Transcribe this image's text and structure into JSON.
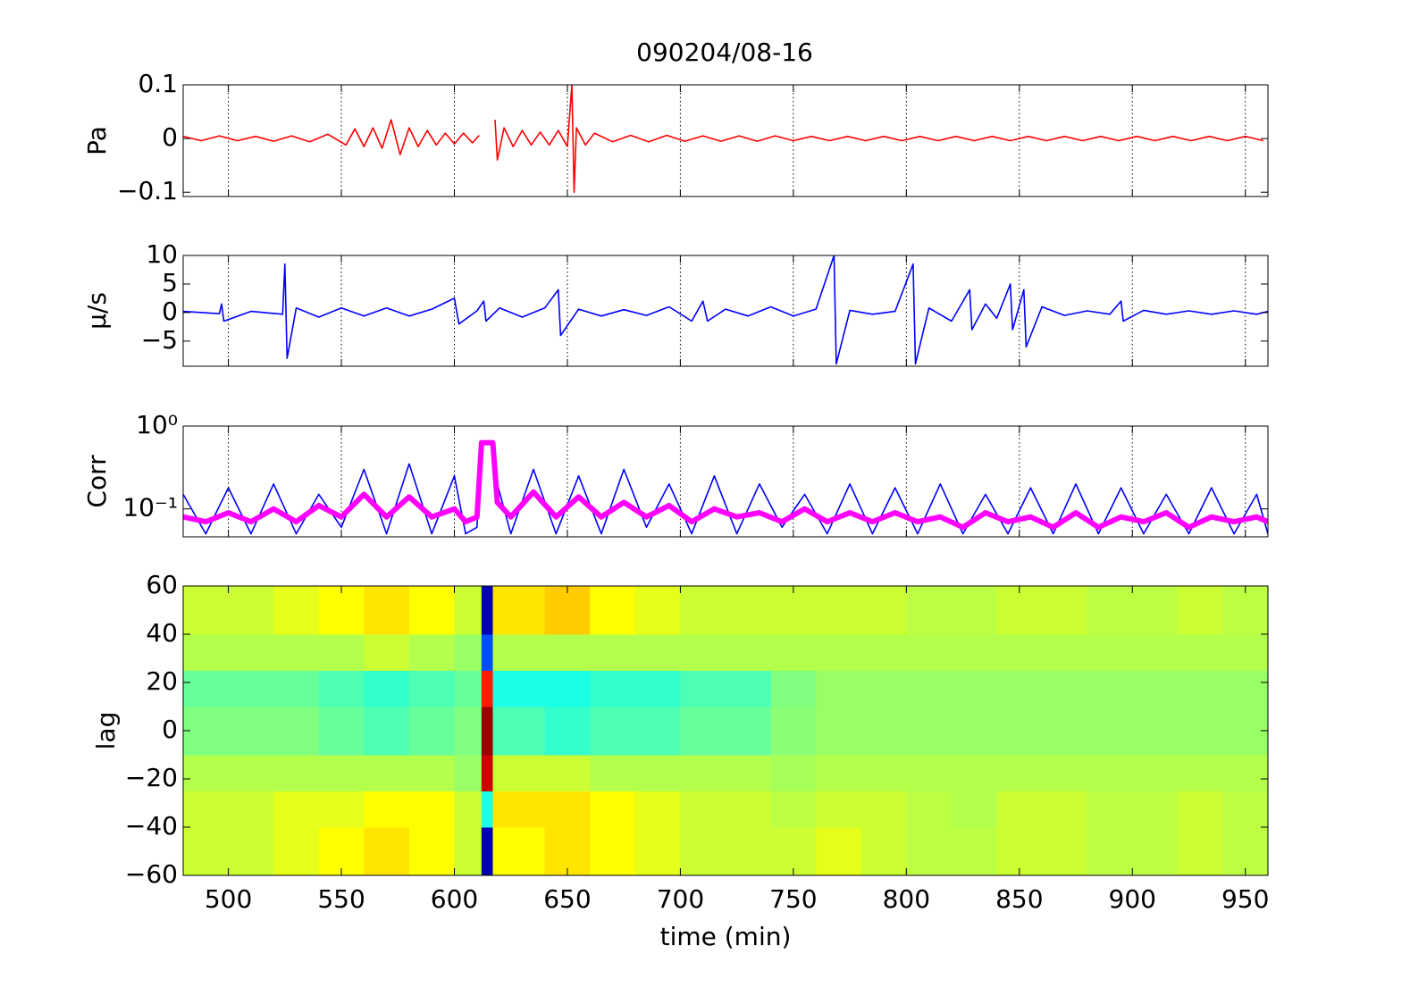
{
  "chart_data": [
    {
      "type": "line",
      "title": "090204/08-16",
      "ylabel": "Pa",
      "xlim": [
        480,
        960
      ],
      "xticks": [
        500,
        550,
        600,
        650,
        700,
        750,
        800,
        850,
        900,
        950
      ],
      "ylim": [
        -0.108,
        0.1
      ],
      "yticks": [
        {
          "value": -0.1,
          "label": "−0.1"
        },
        0,
        0.1
      ],
      "grid": "x",
      "series": [
        {
          "color": "#ff0000",
          "x": [
            480,
            488,
            496,
            504,
            512,
            520,
            528,
            536,
            544,
            552,
            556,
            560,
            564,
            568,
            572,
            576,
            580,
            584,
            588,
            592,
            596,
            600,
            604,
            608,
            611,
            615,
            618,
            619,
            622,
            626,
            630,
            634,
            638,
            642,
            646,
            650,
            652,
            653,
            654,
            658,
            662,
            670,
            678,
            686,
            694,
            702,
            710,
            718,
            726,
            734,
            742,
            750,
            758,
            766,
            774,
            782,
            790,
            798,
            806,
            814,
            822,
            830,
            838,
            846,
            854,
            862,
            870,
            878,
            886,
            894,
            902,
            910,
            918,
            926,
            934,
            942,
            950,
            958
          ],
          "values": [
            0.004,
            -0.004,
            0.005,
            -0.004,
            0.004,
            -0.005,
            0.005,
            -0.006,
            0.008,
            -0.012,
            0.018,
            -0.015,
            0.02,
            -0.018,
            0.035,
            -0.03,
            0.02,
            -0.015,
            0.015,
            -0.012,
            0.01,
            -0.01,
            0.01,
            -0.008,
            0.006,
            null,
            0.035,
            -0.04,
            0.02,
            -0.015,
            0.015,
            -0.012,
            0.012,
            -0.012,
            0.015,
            -0.015,
            0.1,
            -0.1,
            0.02,
            -0.012,
            0.01,
            -0.006,
            0.006,
            -0.006,
            0.006,
            -0.005,
            0.005,
            -0.005,
            0.005,
            -0.005,
            0.005,
            -0.004,
            0.004,
            -0.004,
            0.004,
            -0.004,
            0.004,
            -0.004,
            0.004,
            -0.004,
            0.004,
            -0.004,
            0.004,
            -0.004,
            0.004,
            -0.004,
            0.004,
            -0.004,
            0.004,
            -0.004,
            0.004,
            -0.004,
            0.004,
            -0.004,
            0.004,
            -0.004,
            0.004,
            -0.004
          ]
        }
      ]
    },
    {
      "type": "line",
      "ylabel": "μ/s",
      "xlim": [
        480,
        960
      ],
      "xticks": [
        500,
        550,
        600,
        650,
        700,
        750,
        800,
        850,
        900,
        950
      ],
      "ylim": [
        -9.4,
        10
      ],
      "yticks": [
        {
          "value": -5,
          "label": "−5"
        },
        0,
        5,
        10
      ],
      "grid": "x",
      "series": [
        {
          "color": "#0000ff",
          "x": [
            480,
            496,
            497,
            498,
            510,
            524,
            525,
            526,
            530,
            540,
            550,
            560,
            570,
            580,
            590,
            600,
            602,
            610,
            613,
            614,
            620,
            630,
            640,
            646,
            647,
            655,
            665,
            675,
            685,
            695,
            705,
            710,
            712,
            720,
            730,
            740,
            750,
            760,
            768,
            769,
            775,
            785,
            795,
            803,
            804,
            810,
            820,
            828,
            829,
            835,
            840,
            846,
            847,
            852,
            853,
            860,
            870,
            880,
            890,
            895,
            896,
            905,
            915,
            925,
            935,
            945,
            955,
            960
          ],
          "values": [
            0.2,
            -0.2,
            1.5,
            -1.5,
            0.2,
            -0.3,
            8.5,
            -8,
            0.8,
            -0.8,
            0.8,
            -0.6,
            0.8,
            -0.6,
            0.6,
            2.5,
            -2,
            0.3,
            2,
            -1.5,
            0.8,
            -0.8,
            0.8,
            4,
            -4,
            0.6,
            -0.6,
            0.5,
            -0.5,
            1,
            -1.5,
            2,
            -1.5,
            0.6,
            -0.6,
            1,
            -0.6,
            0.6,
            10,
            -9,
            0.4,
            -0.3,
            0.2,
            8.5,
            -9,
            0.8,
            -1.5,
            4,
            -3,
            1.5,
            -1,
            5,
            -3,
            4,
            -6,
            1,
            -0.5,
            0.3,
            -0.3,
            2,
            -1.5,
            0.4,
            -0.3,
            0.3,
            -0.3,
            0.3,
            -0.3,
            0.2
          ]
        }
      ]
    },
    {
      "type": "line",
      "ylabel": "Corr",
      "yscale": "log",
      "xlim": [
        480,
        960
      ],
      "xticks": [
        500,
        550,
        600,
        650,
        700,
        750,
        800,
        850,
        900,
        950
      ],
      "ylim": [
        0.046,
        1
      ],
      "yticks": [
        {
          "value": 0.1,
          "label": "10⁻¹"
        },
        {
          "value": 1,
          "label": "10⁰"
        }
      ],
      "grid": "x",
      "x": [
        480,
        490,
        500,
        510,
        520,
        530,
        540,
        550,
        560,
        570,
        580,
        590,
        600,
        605,
        610,
        612,
        617,
        619,
        625,
        635,
        645,
        655,
        665,
        675,
        685,
        695,
        705,
        715,
        725,
        735,
        745,
        755,
        765,
        775,
        785,
        795,
        805,
        815,
        825,
        835,
        845,
        855,
        865,
        875,
        885,
        895,
        905,
        915,
        925,
        935,
        945,
        955,
        960
      ],
      "series": [
        {
          "color": "#0000ff",
          "values": [
            0.15,
            0.05,
            0.18,
            0.05,
            0.2,
            0.05,
            0.15,
            0.06,
            0.3,
            0.05,
            0.35,
            0.05,
            0.25,
            0.05,
            0.06,
            0.6,
            0.6,
            0.2,
            0.05,
            0.3,
            0.05,
            0.25,
            0.05,
            0.3,
            0.06,
            0.2,
            0.05,
            0.25,
            0.05,
            0.2,
            0.06,
            0.15,
            0.05,
            0.2,
            0.05,
            0.18,
            0.05,
            0.2,
            0.05,
            0.15,
            0.05,
            0.18,
            0.05,
            0.2,
            0.05,
            0.18,
            0.05,
            0.15,
            0.05,
            0.18,
            0.05,
            0.15,
            0.05
          ]
        },
        {
          "color": "#ff00ff",
          "values": [
            0.08,
            0.07,
            0.09,
            0.07,
            0.1,
            0.07,
            0.11,
            0.08,
            0.15,
            0.08,
            0.14,
            0.08,
            0.1,
            0.07,
            0.08,
            0.63,
            0.63,
            0.12,
            0.08,
            0.16,
            0.08,
            0.14,
            0.08,
            0.12,
            0.08,
            0.11,
            0.07,
            0.1,
            0.08,
            0.09,
            0.07,
            0.1,
            0.07,
            0.09,
            0.07,
            0.09,
            0.07,
            0.08,
            0.06,
            0.09,
            0.07,
            0.08,
            0.06,
            0.09,
            0.06,
            0.08,
            0.07,
            0.09,
            0.06,
            0.08,
            0.07,
            0.08,
            0.07
          ]
        }
      ]
    },
    {
      "type": "heatmap",
      "ylabel": "lag",
      "xlabel": "time (min)",
      "xlim": [
        480,
        960
      ],
      "xticks": [
        500,
        550,
        600,
        650,
        700,
        750,
        800,
        850,
        900,
        950
      ],
      "ylim": [
        -60,
        60
      ],
      "yticks": [
        {
          "value": -60,
          "label": "−60"
        },
        {
          "value": -40,
          "label": "−40"
        },
        {
          "value": -20,
          "label": "−20"
        },
        0,
        20,
        40,
        60
      ],
      "clim": [
        -1,
        1
      ],
      "colormap": "jet",
      "xbins": [
        480,
        500,
        520,
        540,
        560,
        580,
        600,
        612,
        617,
        640,
        660,
        680,
        700,
        720,
        740,
        760,
        780,
        800,
        820,
        840,
        860,
        880,
        900,
        920,
        940,
        960
      ],
      "ybins": [
        -60,
        -40,
        -25,
        -10,
        10,
        25,
        40,
        60
      ],
      "z": [
        [
          0.15,
          0.15,
          0.2,
          0.25,
          0.3,
          0.25,
          0.15,
          -0.9,
          0.25,
          0.3,
          0.25,
          0.2,
          0.15,
          0.15,
          0.15,
          0.2,
          0.15,
          0.12,
          0.12,
          0.15,
          0.15,
          0.12,
          0.12,
          0.15,
          0.12
        ],
        [
          0.15,
          0.15,
          0.2,
          0.2,
          0.25,
          0.25,
          0.15,
          -0.2,
          0.3,
          0.3,
          0.25,
          0.2,
          0.15,
          0.15,
          0.12,
          0.15,
          0.15,
          0.12,
          0.1,
          0.15,
          0.15,
          0.12,
          0.12,
          0.15,
          0.12
        ],
        [
          0.1,
          0.1,
          0.1,
          0.1,
          0.1,
          0.1,
          0.05,
          0.85,
          0.15,
          0.15,
          0.1,
          0.1,
          0.1,
          0.1,
          0.08,
          0.1,
          0.1,
          0.1,
          0.1,
          0.1,
          0.1,
          0.1,
          0.1,
          0.1,
          0.1
        ],
        [
          0,
          0,
          0,
          -0.05,
          -0.1,
          -0.05,
          0,
          0.95,
          -0.1,
          -0.15,
          -0.1,
          -0.1,
          -0.05,
          -0.05,
          0.02,
          0.05,
          0.05,
          0.05,
          0.05,
          0.05,
          0.05,
          0.05,
          0.05,
          0.05,
          0.05
        ],
        [
          -0.05,
          -0.05,
          -0.05,
          -0.1,
          -0.15,
          -0.1,
          -0.05,
          0.7,
          -0.2,
          -0.2,
          -0.15,
          -0.15,
          -0.1,
          -0.1,
          0,
          0.05,
          0.05,
          0.05,
          0.05,
          0.05,
          0.05,
          0.05,
          0.05,
          0.05,
          0.05
        ],
        [
          0.1,
          0.1,
          0.1,
          0.1,
          0.15,
          0.1,
          0.05,
          -0.6,
          0.1,
          0.1,
          0.1,
          0.1,
          0.1,
          0.1,
          0.1,
          0.1,
          0.1,
          0.1,
          0.1,
          0.1,
          0.1,
          0.1,
          0.1,
          0.1,
          0.1
        ],
        [
          0.15,
          0.15,
          0.2,
          0.25,
          0.3,
          0.25,
          0.15,
          -0.9,
          0.3,
          0.35,
          0.25,
          0.2,
          0.15,
          0.15,
          0.15,
          0.15,
          0.15,
          0.12,
          0.12,
          0.15,
          0.15,
          0.12,
          0.12,
          0.15,
          0.12
        ]
      ]
    }
  ]
}
